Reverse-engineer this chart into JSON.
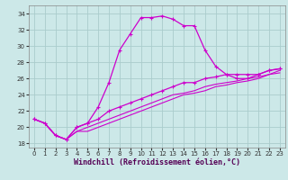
{
  "title": "",
  "xlabel": "Windchill (Refroidissement éolien,°C)",
  "background_color": "#cce8e8",
  "grid_color": "#aacccc",
  "line_color": "#cc00cc",
  "xlim": [
    -0.5,
    23.5
  ],
  "ylim": [
    17.5,
    35.0
  ],
  "xticks": [
    0,
    1,
    2,
    3,
    4,
    5,
    6,
    7,
    8,
    9,
    10,
    11,
    12,
    13,
    14,
    15,
    16,
    17,
    18,
    19,
    20,
    21,
    22,
    23
  ],
  "yticks": [
    18,
    20,
    22,
    24,
    26,
    28,
    30,
    32,
    34
  ],
  "line1_x": [
    0,
    1,
    2,
    3,
    4,
    5,
    6,
    7,
    8,
    9,
    10,
    11,
    12,
    13,
    14,
    15,
    16,
    17,
    18,
    19,
    20,
    21,
    22,
    23
  ],
  "line1_y": [
    21.0,
    20.5,
    19.0,
    18.5,
    20.0,
    20.5,
    22.5,
    25.5,
    29.5,
    31.5,
    33.5,
    33.5,
    33.7,
    33.3,
    32.5,
    32.5,
    29.5,
    27.5,
    26.5,
    26.0,
    26.0,
    26.5,
    27.0,
    27.2
  ],
  "line1_markers": true,
  "line2_x": [
    0,
    1,
    2,
    3,
    4,
    5,
    6,
    7,
    8,
    9,
    10,
    11,
    12,
    13,
    14,
    15,
    16,
    17,
    18,
    19,
    20,
    21,
    22,
    23
  ],
  "line2_y": [
    21.0,
    20.5,
    19.0,
    18.5,
    20.0,
    20.5,
    21.0,
    22.0,
    22.5,
    23.0,
    23.5,
    24.0,
    24.5,
    25.0,
    25.5,
    25.5,
    26.0,
    26.2,
    26.5,
    26.5,
    26.5,
    26.5,
    27.0,
    27.2
  ],
  "line2_markers": true,
  "line3_x": [
    0,
    1,
    2,
    3,
    4,
    5,
    6,
    7,
    8,
    9,
    10,
    11,
    12,
    13,
    14,
    15,
    16,
    17,
    18,
    19,
    20,
    21,
    22,
    23
  ],
  "line3_y": [
    21.0,
    20.5,
    19.0,
    18.5,
    19.5,
    20.0,
    20.5,
    21.0,
    21.5,
    22.0,
    22.5,
    23.0,
    23.5,
    24.0,
    24.2,
    24.5,
    25.0,
    25.3,
    25.5,
    25.7,
    26.0,
    26.2,
    26.5,
    26.7
  ],
  "line3_markers": false,
  "line4_x": [
    0,
    1,
    2,
    3,
    4,
    5,
    6,
    7,
    8,
    9,
    10,
    11,
    12,
    13,
    14,
    15,
    16,
    17,
    18,
    19,
    20,
    21,
    22,
    23
  ],
  "line4_y": [
    21.0,
    20.5,
    19.0,
    18.5,
    19.5,
    19.5,
    20.0,
    20.5,
    21.0,
    21.5,
    22.0,
    22.5,
    23.0,
    23.5,
    24.0,
    24.2,
    24.5,
    25.0,
    25.2,
    25.5,
    25.7,
    26.0,
    26.5,
    27.0
  ],
  "line4_markers": false,
  "tick_fontsize": 5,
  "xlabel_fontsize": 6
}
